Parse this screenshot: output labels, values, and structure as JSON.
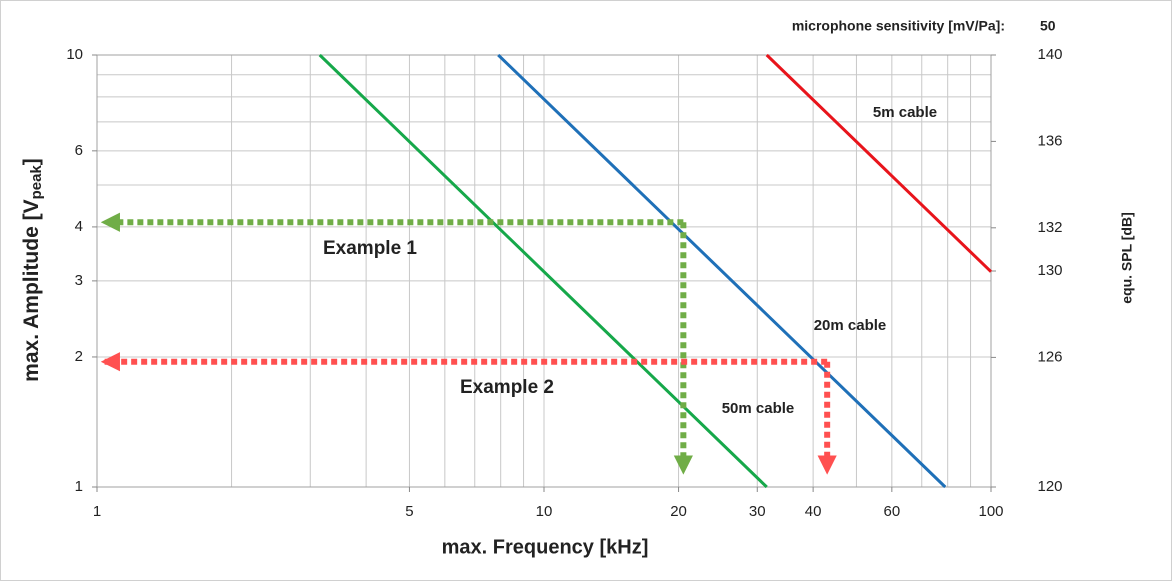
{
  "chart_data": {
    "type": "line",
    "header_label": "microphone sensitivity [mV/Pa]:",
    "header_value": "50",
    "x_label": "max. Frequency [kHz]",
    "y_label": "max. Amplitude [V",
    "y_label_sub": "peak",
    "y_label_end": "]",
    "y2_label": "equ. SPL [dB]",
    "xscale": "log",
    "yscale": "log",
    "xlim": [
      1,
      100
    ],
    "ylim": [
      1,
      10
    ],
    "y2lim": [
      120,
      140
    ],
    "xticks": [
      1,
      5,
      10,
      20,
      30,
      40,
      60,
      100
    ],
    "yticks": [
      1,
      2,
      3,
      4,
      6,
      10
    ],
    "y2ticks": [
      120,
      126,
      130,
      132,
      136,
      140
    ],
    "xgrid": [
      1,
      2,
      3,
      4,
      5,
      6,
      7,
      8,
      9,
      10,
      20,
      30,
      40,
      50,
      60,
      70,
      80,
      90,
      100
    ],
    "ygrid": [
      1,
      2,
      3,
      4,
      5,
      6,
      7,
      8,
      9,
      10
    ],
    "grid": true,
    "series": [
      {
        "name": "5m cable",
        "color": "#e8141b",
        "x": [
          31.5,
          100
        ],
        "values": [
          10,
          3.15
        ]
      },
      {
        "name": "20m cable",
        "color": "#1f70b8",
        "x": [
          7.9,
          79
        ],
        "values": [
          10,
          1
        ]
      },
      {
        "name": "50m cable",
        "color": "#16a84a",
        "x": [
          3.15,
          31.5
        ],
        "values": [
          10,
          1
        ]
      }
    ],
    "annotations": [
      {
        "text": "Example 1",
        "color": "#70ad47",
        "arrows": [
          {
            "x": [
              20.5,
              1.04
            ],
            "y": [
              4.1,
              4.1
            ]
          },
          {
            "x": [
              20.5,
              20.5
            ],
            "y": [
              4.1,
              1.09
            ]
          }
        ]
      },
      {
        "text": "Example 2",
        "color": "#ff5050",
        "arrows": [
          {
            "x": [
              43,
              1.04
            ],
            "y": [
              1.95,
              1.95
            ]
          },
          {
            "x": [
              43,
              43
            ],
            "y": [
              1.95,
              1.09
            ]
          }
        ]
      }
    ]
  }
}
